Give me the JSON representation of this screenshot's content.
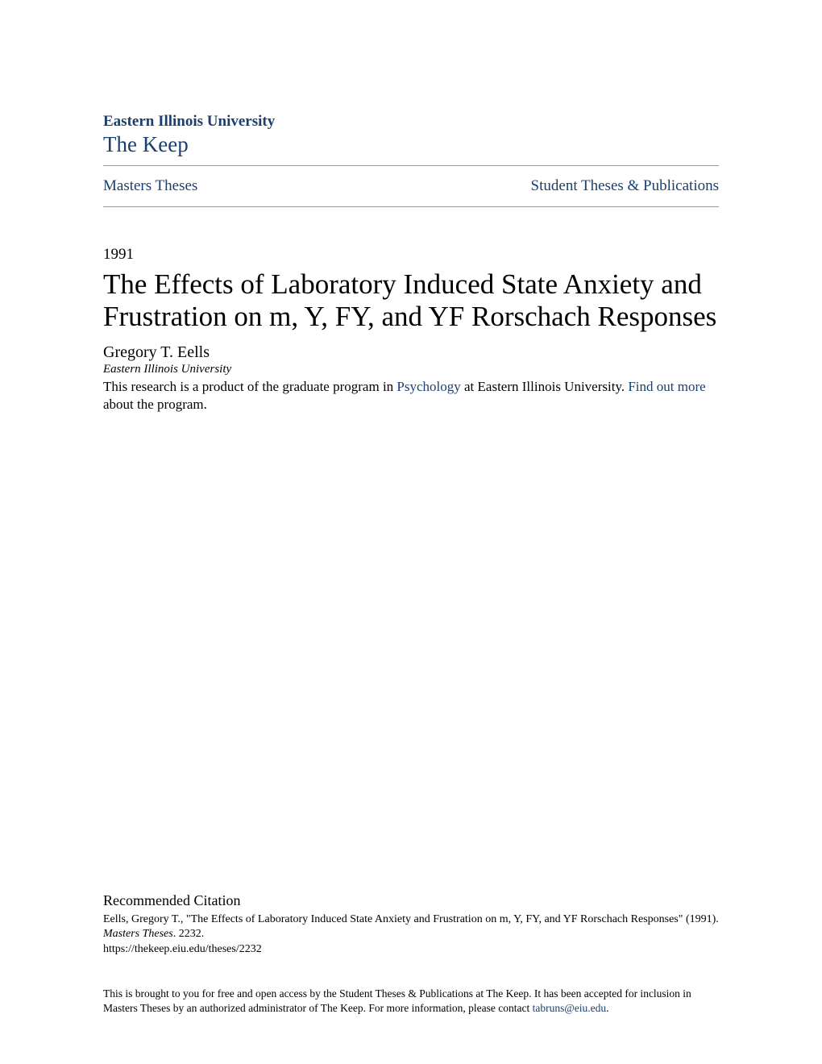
{
  "header": {
    "institution": "Eastern Illinois University",
    "repository": "The Keep"
  },
  "nav": {
    "left": "Masters Theses",
    "right": "Student Theses & Publications"
  },
  "colors": {
    "link": "#1a3f6e",
    "text": "#000000",
    "background": "#ffffff",
    "rule": "#999999"
  },
  "paper": {
    "year": "1991",
    "title": "The Effects of Laboratory Induced State Anxiety and Frustration on m, Y, FY, and YF Rorschach Responses",
    "author": "Gregory T. Eells",
    "affiliation": "Eastern Illinois University",
    "desc_prefix": "This research is a product of the graduate program in ",
    "desc_link1": "Psychology",
    "desc_mid": " at Eastern Illinois University. ",
    "desc_link2": "Find out more",
    "desc_suffix": " about the program."
  },
  "citation": {
    "heading": "Recommended Citation",
    "line1": "Eells, Gregory T., \"The Effects of Laboratory Induced State Anxiety and Frustration on m, Y, FY, and YF Rorschach Responses\" (1991). ",
    "line1_italic": "Masters Theses",
    "line1_suffix": ". 2232.",
    "url": "https://thekeep.eiu.edu/theses/2232"
  },
  "access": {
    "text_prefix": "This is brought to you for free and open access by the Student Theses & Publications at The Keep. It has been accepted for inclusion in Masters Theses by an authorized administrator of The Keep. For more information, please contact ",
    "email": "tabruns@eiu.edu",
    "text_suffix": "."
  }
}
